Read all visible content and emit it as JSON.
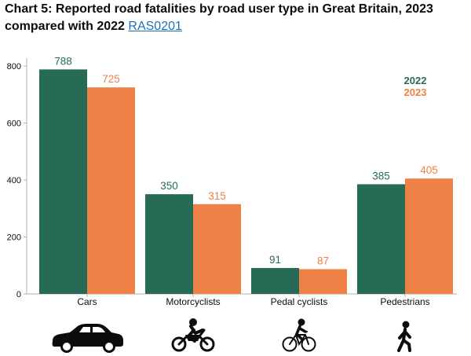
{
  "title": {
    "text": "Chart 5: Reported road fatalities by road user type in Great Britain, 2023 compared with 2022",
    "link": "RAS0201"
  },
  "chart_data": {
    "type": "bar",
    "categories": [
      "Cars",
      "Motorcyclists",
      "Pedal cyclists",
      "Pedestrians"
    ],
    "series": [
      {
        "name": "2022",
        "color": "#276b57",
        "values": [
          788,
          350,
          91,
          385
        ]
      },
      {
        "name": "2023",
        "color": "#ee8146",
        "values": [
          725,
          315,
          87,
          405
        ]
      }
    ],
    "yticks": [
      0,
      200,
      400,
      600,
      800
    ],
    "ylim": [
      0,
      800
    ],
    "xlabel": "",
    "ylabel": "",
    "grid": false,
    "legend_position": "top-right",
    "category_icons": [
      "car-icon",
      "motorcycle-icon",
      "bicycle-icon",
      "pedestrian-icon"
    ]
  }
}
